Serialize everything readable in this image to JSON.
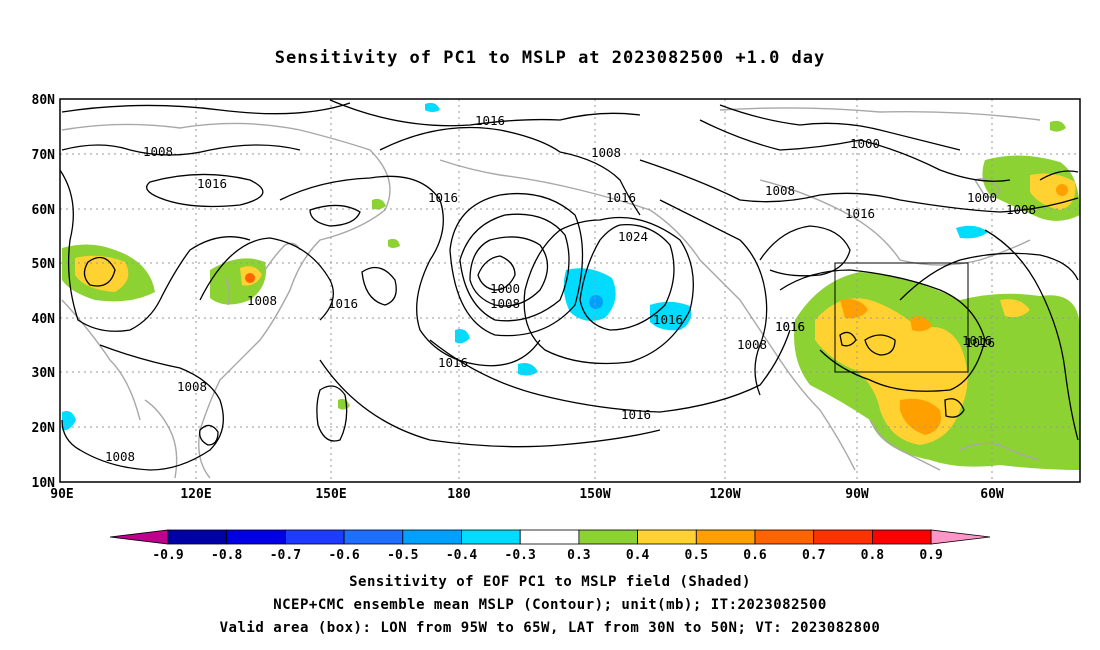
{
  "title": "Sensitivity of PC1 to MSLP at 2023082500 +1.0 day",
  "axes": {
    "lat_ticks": [
      "80N",
      "70N",
      "60N",
      "50N",
      "40N",
      "30N",
      "20N",
      "10N"
    ],
    "lon_ticks": [
      "90E",
      "120E",
      "150E",
      "180",
      "150W",
      "120W",
      "90W",
      "60W"
    ]
  },
  "contour_labels": [
    "1016",
    "1008",
    "1016",
    "1008",
    "1016",
    "1000",
    "1016",
    "1016",
    "1008",
    "1024",
    "1008",
    "1016",
    "1016",
    "1000",
    "1008",
    "1016",
    "1016",
    "1016",
    "1016",
    "1008",
    "1000",
    "1016",
    "1008",
    "1016",
    "1008",
    "1008"
  ],
  "colorbar": {
    "labels": [
      "-0.9",
      "-0.8",
      "-0.7",
      "-0.6",
      "-0.5",
      "-0.4",
      "-0.3",
      "0.3",
      "0.4",
      "0.5",
      "0.6",
      "0.7",
      "0.8",
      "0.9"
    ],
    "colors": [
      "#c0008c",
      "#0000a8",
      "#0000e6",
      "#1e3cff",
      "#1e6eff",
      "#00a0ff",
      "#00dcff",
      "#ffffff",
      "#8cd232",
      "#ffd232",
      "#ffa000",
      "#ff6400",
      "#ff3200",
      "#ff0000",
      "#ff96c8"
    ]
  },
  "captions": {
    "line1": "Sensitivity of EOF PC1 to MSLP field (Shaded)",
    "line2": "NCEP+CMC ensemble mean MSLP (Contour); unit(mb); IT:2023082500",
    "line3": "Valid area (box): LON from 95W to 65W, LAT from 30N to 50N; VT: 2023082800"
  },
  "valid_area": {
    "lon_min": "95W",
    "lon_max": "65W",
    "lat_min": "30N",
    "lat_max": "50N"
  }
}
